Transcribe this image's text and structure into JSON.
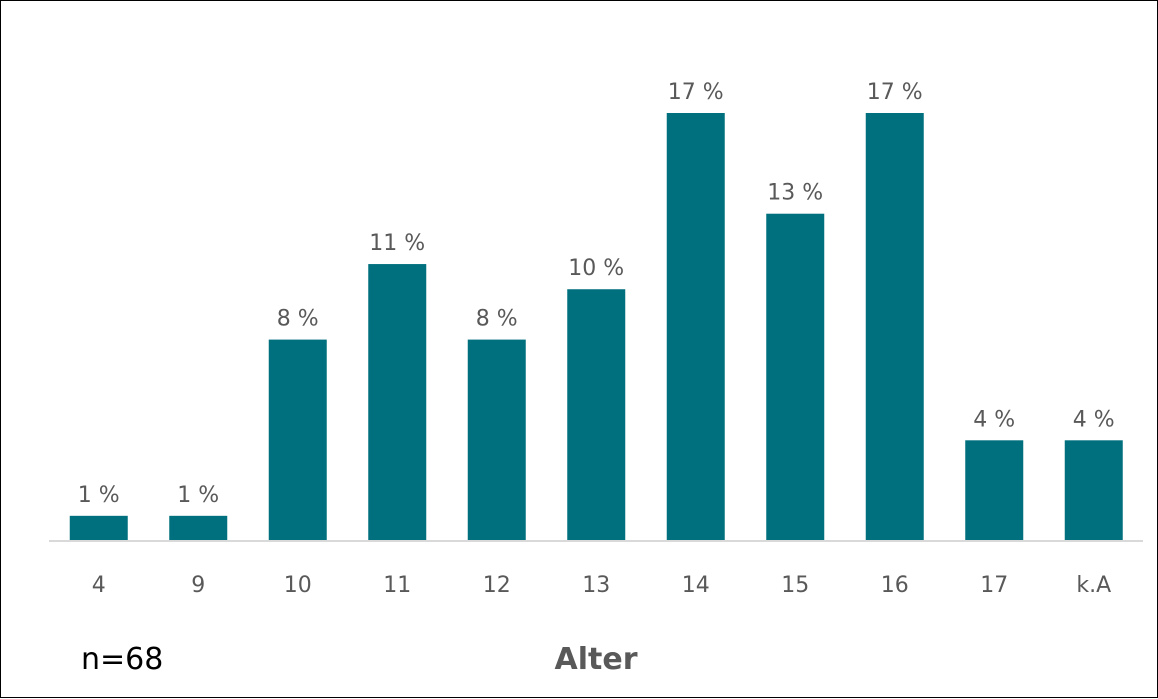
{
  "chart_data": {
    "type": "bar",
    "categories": [
      "4",
      "9",
      "10",
      "11",
      "12",
      "13",
      "14",
      "15",
      "16",
      "17",
      "k.A"
    ],
    "values": [
      1,
      1,
      8,
      11,
      8,
      10,
      17,
      13,
      17,
      4,
      4
    ],
    "value_suffix": " %",
    "xlabel": "Alter",
    "ylabel": "",
    "ylim": [
      0,
      20
    ],
    "grid": false,
    "legend": "none",
    "bar_color": "#00707f",
    "annotation": "n=68"
  }
}
